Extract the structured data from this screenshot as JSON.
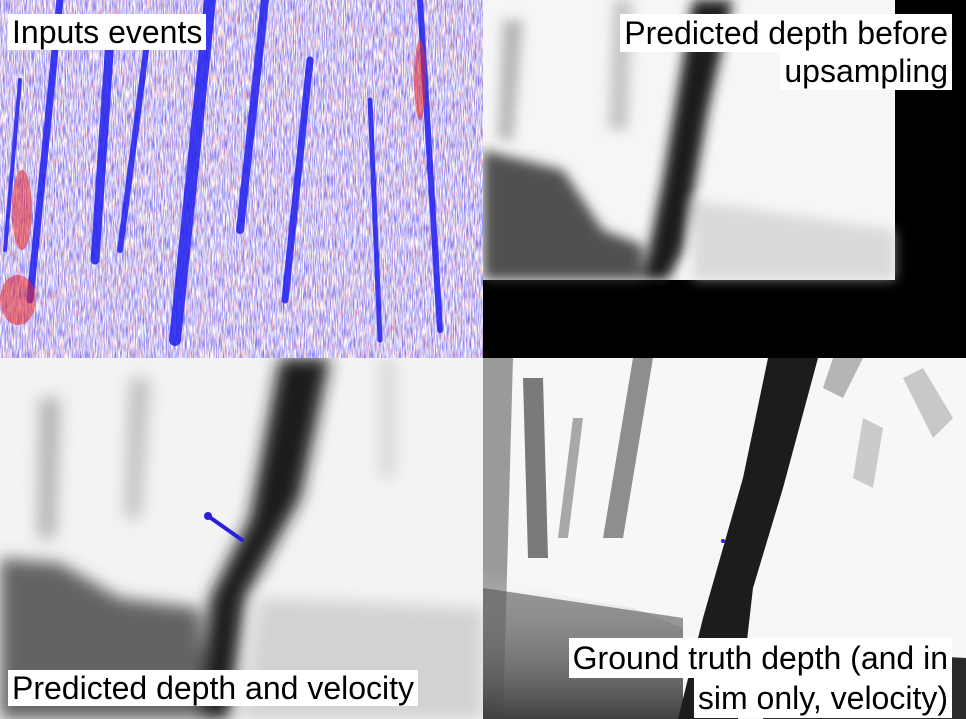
{
  "panels": {
    "input_events": {
      "label": "Inputs events"
    },
    "predicted_before": {
      "label_line1": "Predicted depth before",
      "label_line2": "upsampling"
    },
    "predicted_velocity": {
      "label": "Predicted depth and velocity"
    },
    "ground_truth": {
      "label_line1": "Ground truth depth (and in",
      "label_line2": "sim only, velocity)"
    }
  },
  "colors": {
    "event_positive": "#e8262a",
    "event_negative": "#1f1ff0",
    "velocity_vector": "#2a1fe0"
  }
}
